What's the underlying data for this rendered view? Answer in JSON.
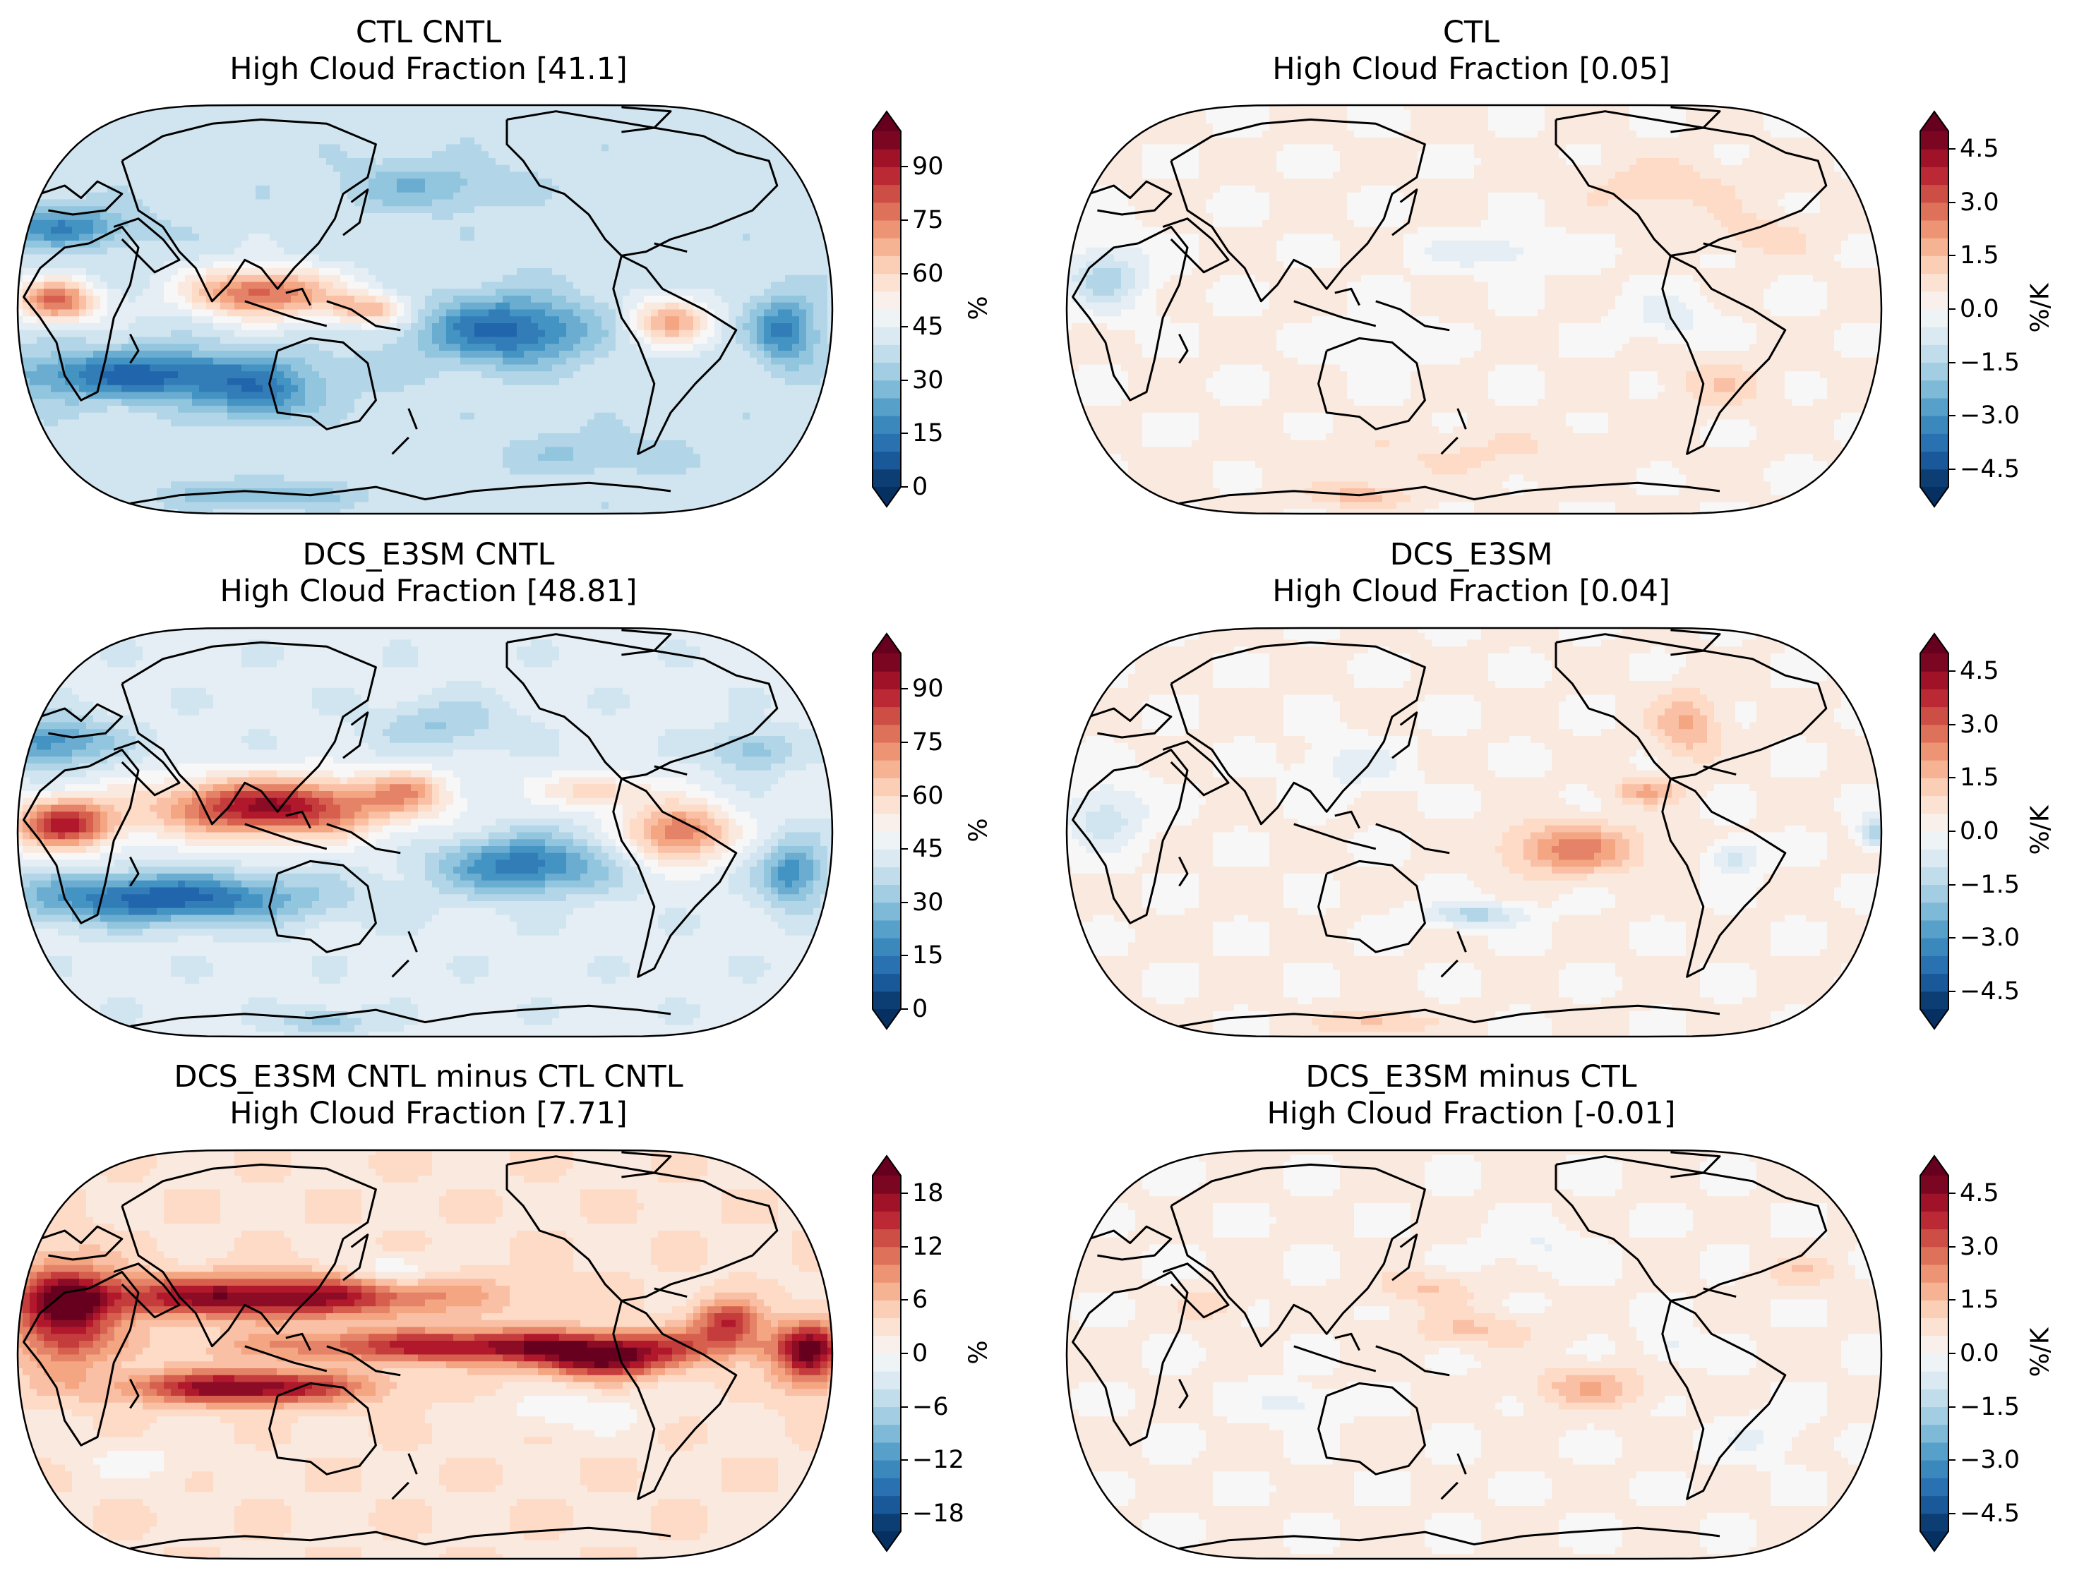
{
  "figure": {
    "colormap": "RdBu_r",
    "panels": [
      {
        "id": "ctl-cntl",
        "title": "CTL CNTL",
        "subtitle": "High Cloud Fraction [41.1]",
        "colorbar": {
          "ticks": [
            "0",
            "15",
            "30",
            "45",
            "60",
            "75",
            "90"
          ],
          "unit": "%",
          "vmin": 0,
          "vmax": 100
        }
      },
      {
        "id": "ctl",
        "title": "CTL",
        "subtitle": "High Cloud Fraction [0.05]",
        "colorbar": {
          "ticks": [
            "−4.5",
            "−3.0",
            "−1.5",
            "0.0",
            "1.5",
            "3.0",
            "4.5"
          ],
          "unit": "%/K",
          "vmin": -5,
          "vmax": 5
        }
      },
      {
        "id": "dcs-cntl",
        "title": "DCS_E3SM CNTL",
        "subtitle": "High Cloud Fraction [48.81]",
        "colorbar": {
          "ticks": [
            "0",
            "15",
            "30",
            "45",
            "60",
            "75",
            "90"
          ],
          "unit": "%",
          "vmin": 0,
          "vmax": 100
        }
      },
      {
        "id": "dcs",
        "title": "DCS_E3SM",
        "subtitle": "High Cloud Fraction [0.04]",
        "colorbar": {
          "ticks": [
            "−4.5",
            "−3.0",
            "−1.5",
            "0.0",
            "1.5",
            "3.0",
            "4.5"
          ],
          "unit": "%/K",
          "vmin": -5,
          "vmax": 5
        }
      },
      {
        "id": "diff-cntl",
        "title": "DCS_E3SM CNTL minus CTL CNTL",
        "subtitle": "High Cloud Fraction [7.71]",
        "colorbar": {
          "ticks": [
            "−18",
            "−12",
            "−6",
            "0",
            "6",
            "12",
            "18"
          ],
          "unit": "%",
          "vmin": -20,
          "vmax": 20
        }
      },
      {
        "id": "diff",
        "title": "DCS_E3SM minus CTL",
        "subtitle": "High Cloud Fraction [-0.01]",
        "colorbar": {
          "ticks": [
            "−4.5",
            "−3.0",
            "−1.5",
            "0.0",
            "1.5",
            "3.0",
            "4.5"
          ],
          "unit": "%/K",
          "vmin": -5,
          "vmax": 5
        }
      }
    ]
  }
}
